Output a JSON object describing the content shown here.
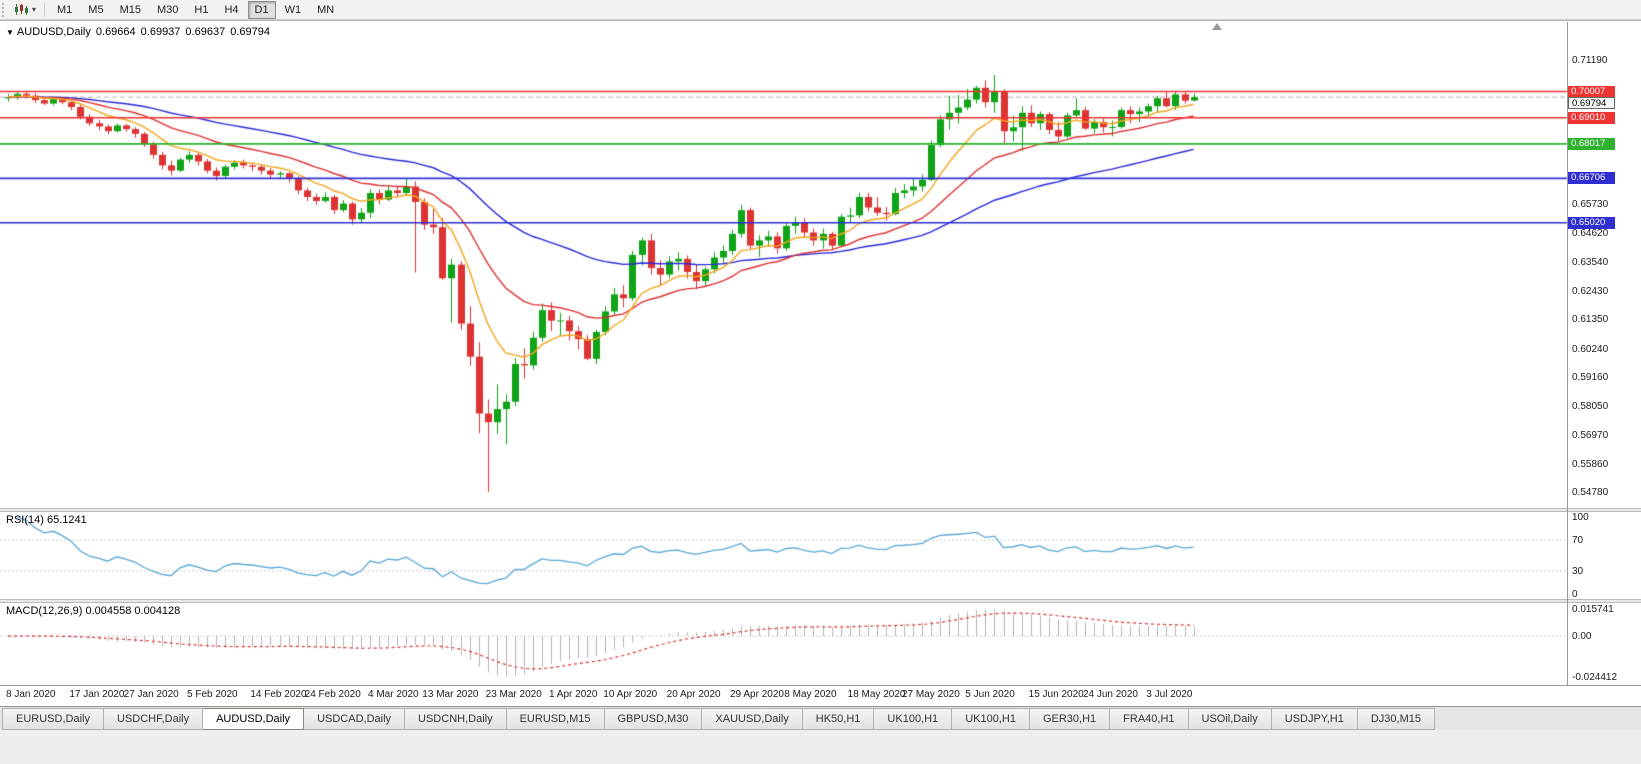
{
  "toolbar": {
    "timeframes": [
      "M1",
      "M5",
      "M15",
      "M30",
      "H1",
      "H4",
      "D1",
      "W1",
      "MN"
    ],
    "active_timeframe": "D1"
  },
  "chart_header": {
    "dropdown_glyph": "▼",
    "symbol": "AUDUSD,Daily",
    "open": "0.69664",
    "high": "0.69937",
    "low": "0.69637",
    "close": "0.69794"
  },
  "price_axis": {
    "ticks": [
      {
        "label": "0.71190",
        "value": 0.7119
      },
      {
        "label": "0.65730",
        "value": 0.6573
      },
      {
        "label": "0.64620",
        "value": 0.6462
      },
      {
        "label": "0.63540",
        "value": 0.6354
      },
      {
        "label": "0.62430",
        "value": 0.6243
      },
      {
        "label": "0.61350",
        "value": 0.6135
      },
      {
        "label": "0.60240",
        "value": 0.6024
      },
      {
        "label": "0.59160",
        "value": 0.5916
      },
      {
        "label": "0.58050",
        "value": 0.5805
      },
      {
        "label": "0.56970",
        "value": 0.5697
      },
      {
        "label": "0.55860",
        "value": 0.5586
      },
      {
        "label": "0.54780",
        "value": 0.5478
      }
    ],
    "tags": [
      {
        "label": "0.70007",
        "value": 0.70007,
        "bg": "#ee3333",
        "fg": "#ffffff",
        "kind": "resistance"
      },
      {
        "label": "0.69794",
        "value": 0.69794,
        "bg": "#f6f6f6",
        "fg": "#000000",
        "kind": "current-price"
      },
      {
        "label": "0.69010",
        "value": 0.6901,
        "bg": "#ee3333",
        "fg": "#ffffff",
        "kind": "resistance"
      },
      {
        "label": "0.68017",
        "value": 0.68017,
        "bg": "#2eb22e",
        "fg": "#ffffff",
        "kind": "support"
      },
      {
        "label": "0.66706",
        "value": 0.66706,
        "bg": "#2f2fd3",
        "fg": "#ffffff",
        "kind": "support"
      },
      {
        "label": "0.65020",
        "value": 0.6502,
        "bg": "#2f2fd3",
        "fg": "#ffffff",
        "kind": "support"
      }
    ]
  },
  "indicator_rsi": {
    "label": "RSI(14) 65.1241",
    "axis": [
      "100",
      "70",
      "30",
      "0"
    ],
    "axis_values": [
      100,
      70,
      30,
      0
    ]
  },
  "indicator_macd": {
    "label": "MACD(12,26,9) 0.004558 0.004128",
    "axis": [
      "0.015741",
      "0.00",
      "-0.024412"
    ]
  },
  "tabs": {
    "active_index": 2,
    "items": [
      "EURUSD,Daily",
      "USDCHF,Daily",
      "AUDUSD,Daily",
      "USDCAD,Daily",
      "USDCNH,Daily",
      "EURUSD,M15",
      "GBPUSD,M30",
      "XAUUSD,Daily",
      "HK50,H1",
      "UK100,H1",
      "UK100,H1",
      "GER30,H1",
      "FRA40,H1",
      "USOil,Daily",
      "USDJPY,H1",
      "DJ30,M15"
    ],
    "active": "AUDUSD,Daily"
  },
  "chart_data": {
    "type": "candlestick",
    "title": "AUDUSD,Daily",
    "y_range": [
      0.5418,
      0.7265
    ],
    "current_price": 0.69794,
    "bull_color": "#0fa318",
    "bear_color": "#dd3333",
    "x_labels": [
      "8 Jan 2020",
      "17 Jan 2020",
      "27 Jan 2020",
      "5 Feb 2020",
      "14 Feb 2020",
      "24 Feb 2020",
      "4 Mar 2020",
      "13 Mar 2020",
      "23 Mar 2020",
      "1 Apr 2020",
      "10 Apr 2020",
      "20 Apr 2020",
      "29 Apr 2020",
      "8 May 2020",
      "18 May 2020",
      "27 May 2020",
      "5 Jun 2020",
      "15 Jun 2020",
      "24 Jun 2020",
      "3 Jul 2020"
    ],
    "horizontal_lines": [
      {
        "value": 0.70007,
        "color": "#ee3333",
        "kind": "resistance"
      },
      {
        "value": 0.6901,
        "color": "#ee3333",
        "kind": "resistance"
      },
      {
        "value": 0.68017,
        "color": "#2eb22e",
        "kind": "support"
      },
      {
        "value": 0.66706,
        "color": "#2f2fd3",
        "kind": "support"
      },
      {
        "value": 0.6502,
        "color": "#2f2fd3",
        "kind": "support"
      }
    ],
    "moving_averages": [
      {
        "period": 50,
        "method": "ema",
        "color": "#2828d8"
      },
      {
        "period": 21,
        "method": "ema",
        "color": "#e03030"
      },
      {
        "period": 9,
        "method": "ema",
        "color": "#f2a51e"
      }
    ],
    "indicators": [
      {
        "type": "rsi",
        "period": 14,
        "value": 65.1241,
        "color": "#58a6d6",
        "levels": [
          70,
          30
        ],
        "range": [
          0,
          100
        ]
      },
      {
        "type": "macd",
        "fast": 12,
        "slow": 26,
        "signal": 9,
        "values": [
          0.004558,
          0.004128
        ],
        "histogram_color": "#b4b4b4",
        "signal_color": "#e03030"
      }
    ],
    "ohlc": [
      [
        0.6975,
        0.6993,
        0.6962,
        0.698
      ],
      [
        0.698,
        0.7,
        0.697,
        0.6992
      ],
      [
        0.6992,
        0.6999,
        0.6975,
        0.6985
      ],
      [
        0.6985,
        0.6996,
        0.6958,
        0.6968
      ],
      [
        0.6968,
        0.6979,
        0.695,
        0.6955
      ],
      [
        0.6955,
        0.6978,
        0.6948,
        0.6972
      ],
      [
        0.6972,
        0.698,
        0.6952,
        0.696
      ],
      [
        0.696,
        0.6968,
        0.693,
        0.6942
      ],
      [
        0.6942,
        0.695,
        0.6895,
        0.6905
      ],
      [
        0.6905,
        0.6915,
        0.687,
        0.688
      ],
      [
        0.688,
        0.6892,
        0.6855,
        0.6868
      ],
      [
        0.6868,
        0.6875,
        0.6838,
        0.685
      ],
      [
        0.685,
        0.688,
        0.6845,
        0.6872
      ],
      [
        0.6872,
        0.6878,
        0.6848,
        0.6858
      ],
      [
        0.6858,
        0.6865,
        0.6825,
        0.684
      ],
      [
        0.684,
        0.6848,
        0.679,
        0.68
      ],
      [
        0.68,
        0.681,
        0.6745,
        0.676
      ],
      [
        0.676,
        0.6772,
        0.6705,
        0.672
      ],
      [
        0.672,
        0.6738,
        0.6682,
        0.67
      ],
      [
        0.67,
        0.6748,
        0.6695,
        0.6742
      ],
      [
        0.6742,
        0.6774,
        0.673,
        0.676
      ],
      [
        0.676,
        0.6768,
        0.672,
        0.6735
      ],
      [
        0.6735,
        0.6745,
        0.669,
        0.67
      ],
      [
        0.67,
        0.6712,
        0.6662,
        0.668
      ],
      [
        0.668,
        0.6722,
        0.6672,
        0.6715
      ],
      [
        0.6715,
        0.674,
        0.6705,
        0.673
      ],
      [
        0.673,
        0.6742,
        0.6708,
        0.672
      ],
      [
        0.672,
        0.6728,
        0.6698,
        0.6715
      ],
      [
        0.6715,
        0.6722,
        0.6685,
        0.67
      ],
      [
        0.67,
        0.671,
        0.6672,
        0.6685
      ],
      [
        0.6685,
        0.6698,
        0.6668,
        0.669
      ],
      [
        0.669,
        0.6695,
        0.6655,
        0.667
      ],
      [
        0.667,
        0.6678,
        0.661,
        0.6625
      ],
      [
        0.6625,
        0.6635,
        0.6585,
        0.66
      ],
      [
        0.66,
        0.6612,
        0.657,
        0.6585
      ],
      [
        0.6585,
        0.6618,
        0.6578,
        0.66
      ],
      [
        0.66,
        0.6608,
        0.6535,
        0.655
      ],
      [
        0.655,
        0.6588,
        0.6542,
        0.6575
      ],
      [
        0.6575,
        0.6582,
        0.6495,
        0.6515
      ],
      [
        0.6515,
        0.6558,
        0.6505,
        0.654
      ],
      [
        0.654,
        0.663,
        0.652,
        0.6615
      ],
      [
        0.6615,
        0.6628,
        0.6572,
        0.659
      ],
      [
        0.659,
        0.6645,
        0.6585,
        0.6625
      ],
      [
        0.6625,
        0.6642,
        0.6598,
        0.6615
      ],
      [
        0.6615,
        0.6668,
        0.6605,
        0.664
      ],
      [
        0.664,
        0.666,
        0.6313,
        0.6581
      ],
      [
        0.6581,
        0.6595,
        0.6475,
        0.6495
      ],
      [
        0.6495,
        0.6555,
        0.646,
        0.6485
      ],
      [
        0.6485,
        0.652,
        0.6285,
        0.6291
      ],
      [
        0.6291,
        0.6365,
        0.6123,
        0.6343
      ],
      [
        0.6343,
        0.6355,
        0.6095,
        0.6119
      ],
      [
        0.6119,
        0.6185,
        0.5958,
        0.5993
      ],
      [
        0.5993,
        0.6048,
        0.5702,
        0.5777
      ],
      [
        0.5777,
        0.583,
        0.5478,
        0.5744
      ],
      [
        0.5744,
        0.5887,
        0.57,
        0.5794
      ],
      [
        0.5794,
        0.585,
        0.566,
        0.5822
      ],
      [
        0.5822,
        0.5988,
        0.5805,
        0.5965
      ],
      [
        0.5965,
        0.6025,
        0.591,
        0.596
      ],
      [
        0.596,
        0.6088,
        0.5945,
        0.6065
      ],
      [
        0.6065,
        0.6195,
        0.605,
        0.617
      ],
      [
        0.617,
        0.62,
        0.609,
        0.613
      ],
      [
        0.613,
        0.616,
        0.6072,
        0.6131
      ],
      [
        0.6131,
        0.6148,
        0.6055,
        0.609
      ],
      [
        0.609,
        0.611,
        0.602,
        0.606
      ],
      [
        0.606,
        0.6075,
        0.598,
        0.5985
      ],
      [
        0.5985,
        0.6095,
        0.5965,
        0.6087
      ],
      [
        0.6087,
        0.6185,
        0.6075,
        0.6165
      ],
      [
        0.6165,
        0.6255,
        0.615,
        0.623
      ],
      [
        0.623,
        0.6265,
        0.618,
        0.6215
      ],
      [
        0.6215,
        0.6395,
        0.6205,
        0.638
      ],
      [
        0.638,
        0.6445,
        0.634,
        0.6435
      ],
      [
        0.6435,
        0.646,
        0.6305,
        0.633
      ],
      [
        0.633,
        0.636,
        0.6265,
        0.6305
      ],
      [
        0.6305,
        0.6375,
        0.629,
        0.6355
      ],
      [
        0.6355,
        0.639,
        0.632,
        0.6365
      ],
      [
        0.6365,
        0.6378,
        0.629,
        0.6315
      ],
      [
        0.6315,
        0.6342,
        0.625,
        0.628
      ],
      [
        0.628,
        0.6335,
        0.626,
        0.6325
      ],
      [
        0.6325,
        0.639,
        0.631,
        0.637
      ],
      [
        0.637,
        0.6415,
        0.635,
        0.6395
      ],
      [
        0.6395,
        0.6475,
        0.638,
        0.646
      ],
      [
        0.646,
        0.657,
        0.6445,
        0.655
      ],
      [
        0.655,
        0.656,
        0.64,
        0.6415
      ],
      [
        0.6415,
        0.6455,
        0.6372,
        0.6435
      ],
      [
        0.6435,
        0.6472,
        0.641,
        0.645
      ],
      [
        0.645,
        0.6465,
        0.6385,
        0.6405
      ],
      [
        0.6405,
        0.6505,
        0.6395,
        0.649
      ],
      [
        0.649,
        0.6525,
        0.646,
        0.6505
      ],
      [
        0.6505,
        0.652,
        0.6445,
        0.6465
      ],
      [
        0.6465,
        0.648,
        0.6415,
        0.6435
      ],
      [
        0.6435,
        0.648,
        0.6405,
        0.646
      ],
      [
        0.646,
        0.6468,
        0.6402,
        0.6415
      ],
      [
        0.6415,
        0.6535,
        0.641,
        0.6525
      ],
      [
        0.6525,
        0.656,
        0.6505,
        0.653
      ],
      [
        0.653,
        0.6617,
        0.652,
        0.66
      ],
      [
        0.66,
        0.6616,
        0.6545,
        0.656
      ],
      [
        0.656,
        0.66,
        0.6528,
        0.654
      ],
      [
        0.654,
        0.6562,
        0.651,
        0.6535
      ],
      [
        0.6535,
        0.6635,
        0.653,
        0.6615
      ],
      [
        0.6615,
        0.665,
        0.6595,
        0.6625
      ],
      [
        0.6625,
        0.6668,
        0.6602,
        0.664
      ],
      [
        0.664,
        0.6685,
        0.662,
        0.6665
      ],
      [
        0.6665,
        0.6815,
        0.666,
        0.6797
      ],
      [
        0.6797,
        0.691,
        0.679,
        0.6895
      ],
      [
        0.6895,
        0.6985,
        0.6855,
        0.692
      ],
      [
        0.692,
        0.6988,
        0.688,
        0.694
      ],
      [
        0.694,
        0.701,
        0.693,
        0.697
      ],
      [
        0.697,
        0.7022,
        0.6955,
        0.7015
      ],
      [
        0.7015,
        0.7043,
        0.694,
        0.696
      ],
      [
        0.696,
        0.7064,
        0.692,
        0.7
      ],
      [
        0.7,
        0.701,
        0.68,
        0.685
      ],
      [
        0.685,
        0.691,
        0.681,
        0.6865
      ],
      [
        0.6865,
        0.6945,
        0.6775,
        0.692
      ],
      [
        0.692,
        0.6948,
        0.6865,
        0.688
      ],
      [
        0.688,
        0.6925,
        0.6855,
        0.6915
      ],
      [
        0.6915,
        0.6922,
        0.6838,
        0.6855
      ],
      [
        0.6855,
        0.6885,
        0.681,
        0.683
      ],
      [
        0.683,
        0.692,
        0.6825,
        0.691
      ],
      [
        0.691,
        0.6975,
        0.6905,
        0.693
      ],
      [
        0.693,
        0.6942,
        0.6855,
        0.686
      ],
      [
        0.686,
        0.6895,
        0.6842,
        0.6885
      ],
      [
        0.6885,
        0.6898,
        0.6845,
        0.6865
      ],
      [
        0.6865,
        0.689,
        0.683,
        0.6866
      ],
      [
        0.6866,
        0.694,
        0.686,
        0.693
      ],
      [
        0.693,
        0.6945,
        0.688,
        0.6915
      ],
      [
        0.6915,
        0.694,
        0.6883,
        0.6925
      ],
      [
        0.6925,
        0.6955,
        0.6905,
        0.6945
      ],
      [
        0.6945,
        0.6985,
        0.692,
        0.6975
      ],
      [
        0.6975,
        0.6998,
        0.694,
        0.6945
      ],
      [
        0.6945,
        0.7,
        0.693,
        0.699
      ],
      [
        0.699,
        0.7,
        0.6955,
        0.6966
      ],
      [
        0.69664,
        0.69937,
        0.69637,
        0.69794
      ]
    ]
  }
}
